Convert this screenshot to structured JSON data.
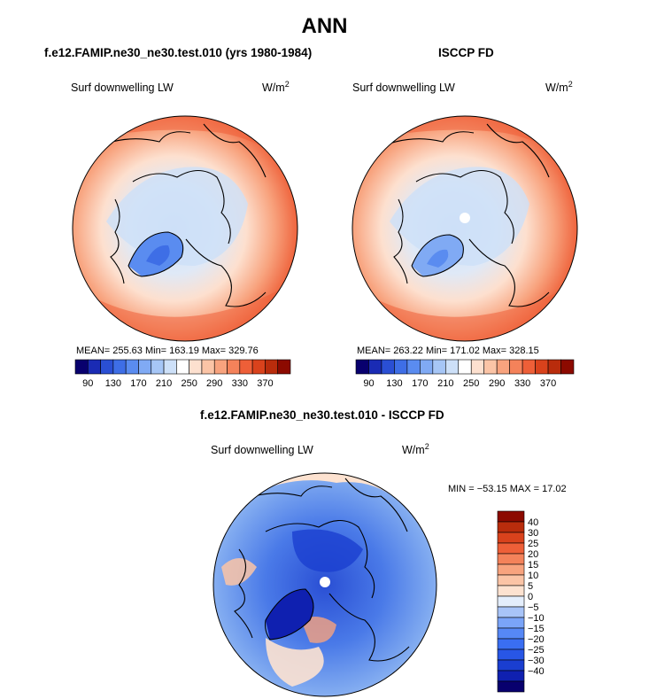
{
  "main_title": "ANN",
  "left": {
    "title": "f.e12.FAMIP.ne30_ne30.test.010 (yrs 1980-1984)",
    "variable": "Surf downwelling LW",
    "unit_base": "W/m",
    "unit_exp": "2",
    "stats": "MEAN= 255.63   Min= 163.19   Max= 329.76"
  },
  "right": {
    "title": "ISCCP FD",
    "variable": "Surf downwelling LW",
    "unit_base": "W/m",
    "unit_exp": "2",
    "stats": "MEAN= 263.22   Min= 171.02   Max= 328.15"
  },
  "diff": {
    "title": "f.e12.FAMIP.ne30_ne30.test.010 - ISCCP FD",
    "variable": "Surf downwelling LW",
    "unit_base": "W/m",
    "unit_exp": "2",
    "stats": "MIN = −53.15 MAX =   17.02"
  },
  "colors": {
    "abs_scale": [
      "#08006e",
      "#1a2bb4",
      "#2a4fd4",
      "#3e6ee6",
      "#5a8cf0",
      "#80aaf4",
      "#a6c6f6",
      "#cde0f8",
      "#ffffff",
      "#fde0cf",
      "#fbc4a6",
      "#f8a37e",
      "#f4825a",
      "#ee5f38",
      "#d9421c",
      "#b92c0c",
      "#8c0a00"
    ],
    "diff_scale": [
      "#08006e",
      "#0f20b0",
      "#1a3ed0",
      "#2856e6",
      "#3a6ef2",
      "#5688f6",
      "#7aa4f8",
      "#a8c4f8",
      "#e4eefc",
      "#fde2d0",
      "#fbc4a6",
      "#f8a37e",
      "#f4825a",
      "#ee5f38",
      "#d9421c",
      "#b92c0c",
      "#8c0a00"
    ]
  },
  "chart_data": [
    {
      "type": "heatmap",
      "title": "f.e12.FAMIP.ne30_ne30.test.010 (yrs 1980-1984)",
      "subtitle": "Surf downwelling LW",
      "units": "W/m^2",
      "projection": "north polar stereographic",
      "stats": {
        "mean": 255.63,
        "min": 163.19,
        "max": 329.76
      },
      "colorbar_levels": [
        90,
        130,
        170,
        210,
        250,
        290,
        330,
        370
      ],
      "colorbar_bins": 17,
      "colorbar_orientation": "horizontal"
    },
    {
      "type": "heatmap",
      "title": "ISCCP FD",
      "subtitle": "Surf downwelling LW",
      "units": "W/m^2",
      "projection": "north polar stereographic",
      "stats": {
        "mean": 263.22,
        "min": 171.02,
        "max": 328.15
      },
      "colorbar_levels": [
        90,
        130,
        170,
        210,
        250,
        290,
        330,
        370
      ],
      "colorbar_bins": 17,
      "colorbar_orientation": "horizontal"
    },
    {
      "type": "heatmap",
      "title": "f.e12.FAMIP.ne30_ne30.test.010 - ISCCP FD",
      "subtitle": "Surf downwelling LW",
      "units": "W/m^2",
      "projection": "north polar stereographic",
      "stats": {
        "min": -53.15,
        "max": 17.02
      },
      "colorbar_levels": [
        40,
        30,
        25,
        20,
        15,
        10,
        5,
        0,
        -5,
        -10,
        -15,
        -20,
        -25,
        -30,
        -40
      ],
      "colorbar_labels": [
        "40",
        "30",
        "25",
        "20",
        "15",
        "10",
        "5",
        "0",
        "−5",
        "−10",
        "−15",
        "−20",
        "−25",
        "−30",
        "−40"
      ],
      "colorbar_bins": 17,
      "colorbar_orientation": "vertical"
    }
  ]
}
